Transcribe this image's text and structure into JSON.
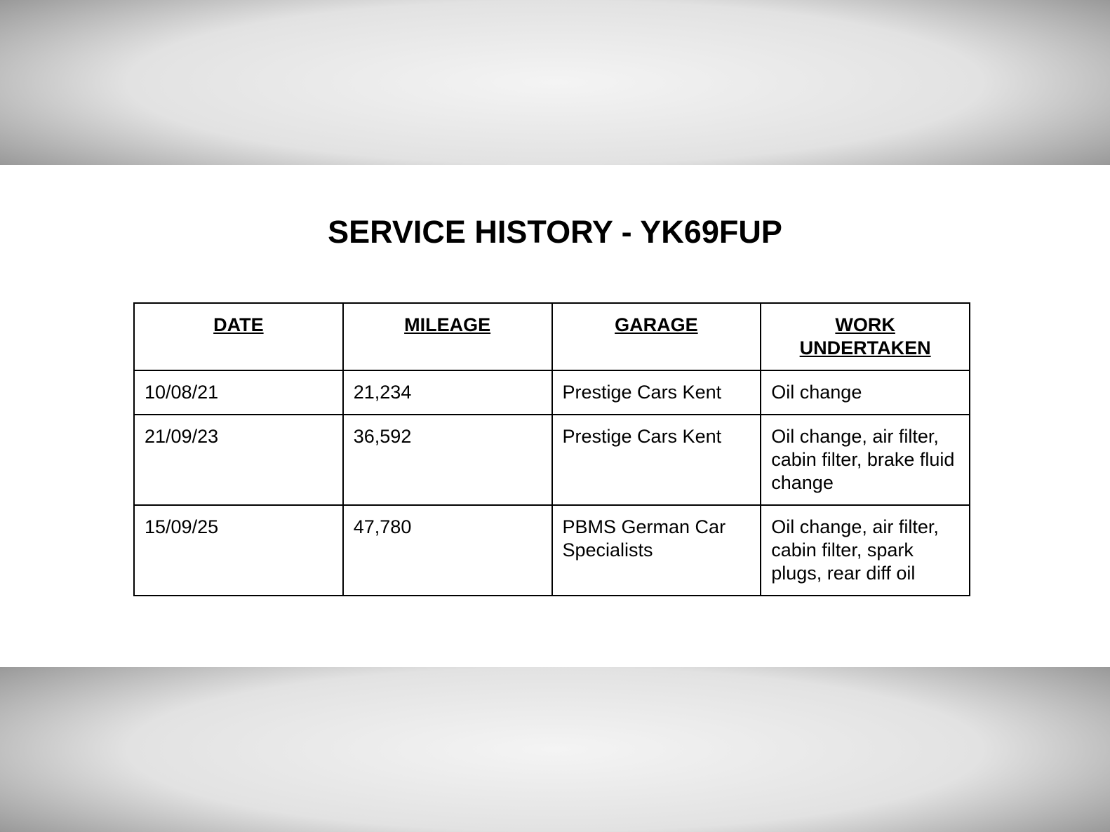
{
  "title": "SERVICE HISTORY - YK69FUP",
  "table": {
    "headers": [
      "DATE",
      "MILEAGE",
      "GARAGE",
      "WORK UNDERTAKEN"
    ],
    "rows": [
      [
        "10/08/21",
        "21,234",
        "Prestige Cars Kent",
        "Oil change"
      ],
      [
        "21/09/23",
        "36,592",
        "Prestige Cars Kent",
        "Oil change, air filter, cabin filter, brake fluid change"
      ],
      [
        "15/09/25",
        "47,780",
        "PBMS German Car Specialists",
        "Oil change, air filter, cabin filter, spark plugs, rear diff oil"
      ]
    ]
  }
}
